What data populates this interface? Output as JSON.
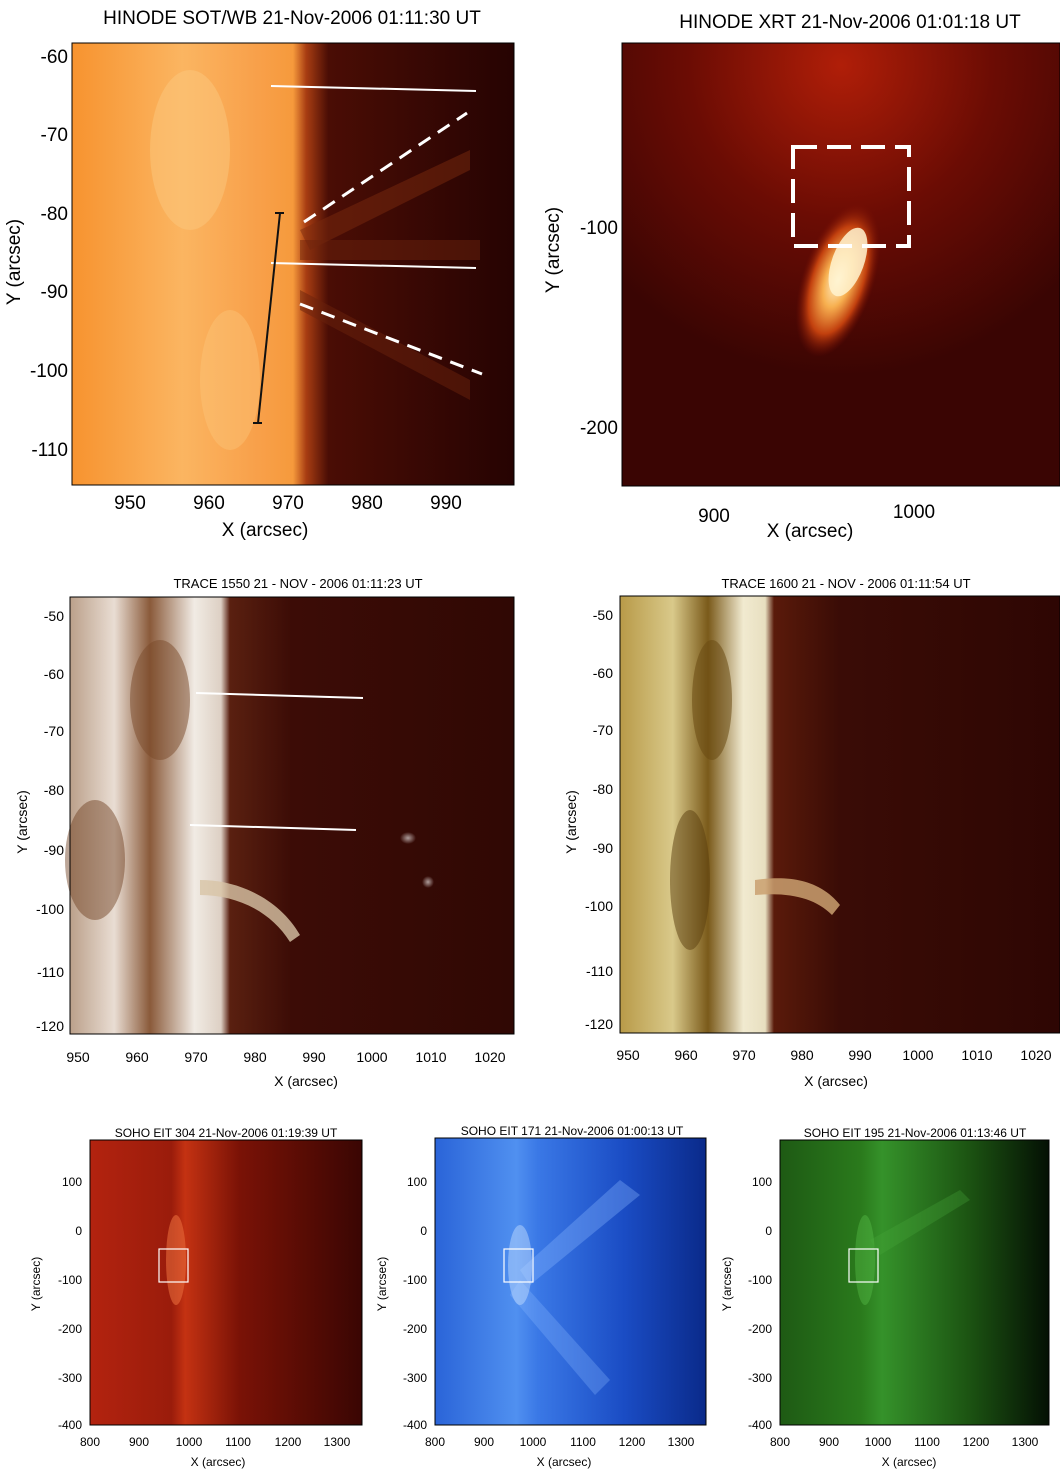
{
  "figure": {
    "panels": [
      {
        "id": "sot",
        "title": "HINODE SOT/WB 21-Nov-2006 01:11:30 UT",
        "xlabel": "X (arcsec)",
        "ylabel": "Y (arcsec)",
        "xticks": [
          "950",
          "960",
          "970",
          "980",
          "990"
        ],
        "yticks": [
          "-60",
          "-70",
          "-80",
          "-90",
          "-100",
          "-110"
        ],
        "colormap": "orange"
      },
      {
        "id": "xrt",
        "title": "HINODE XRT 21-Nov-2006 01:01:18 UT",
        "xlabel": "X (arcsec)",
        "ylabel": "Y (arcsec)",
        "xticks": [
          "900",
          "1000"
        ],
        "yticks": [
          "-100",
          "-200"
        ],
        "colormap": "red"
      },
      {
        "id": "trace1550",
        "title": "TRACE 1550 21 - NOV - 2006 01:11:23 UT",
        "xlabel": "X (arcsec)",
        "ylabel": "Y (arcsec)",
        "xticks": [
          "950",
          "960",
          "970",
          "980",
          "990",
          "1000",
          "1010",
          "1020"
        ],
        "yticks": [
          "-50",
          "-60",
          "-70",
          "-80",
          "-90",
          "-100",
          "-110",
          "-120"
        ],
        "colormap": "brown-white"
      },
      {
        "id": "trace1600",
        "title": "TRACE 1600 21 - NOV - 2006 01:11:54 UT",
        "xlabel": "X (arcsec)",
        "ylabel": "Y (arcsec)",
        "xticks": [
          "950",
          "960",
          "970",
          "980",
          "990",
          "1000",
          "1010",
          "1020"
        ],
        "yticks": [
          "-50",
          "-60",
          "-70",
          "-80",
          "-90",
          "-100",
          "-110",
          "-120"
        ],
        "colormap": "olive-brown"
      },
      {
        "id": "eit304",
        "title": "SOHO EIT 304 21-Nov-2006 01:19:39 UT",
        "xlabel": "X (arcsec)",
        "ylabel": "Y (arcsec)",
        "xticks": [
          "800",
          "900",
          "1000",
          "1100",
          "1200",
          "1300"
        ],
        "yticks": [
          "100",
          "0",
          "-100",
          "-200",
          "-300",
          "-400"
        ],
        "colormap": "red"
      },
      {
        "id": "eit171",
        "title": "SOHO EIT 171 21-Nov-2006 01:00:13 UT",
        "xlabel": "X (arcsec)",
        "ylabel": "Y (arcsec)",
        "xticks": [
          "800",
          "900",
          "1000",
          "1100",
          "1200",
          "1300"
        ],
        "yticks": [
          "100",
          "0",
          "-100",
          "-200",
          "-300",
          "-400"
        ],
        "colormap": "blue"
      },
      {
        "id": "eit195",
        "title": "SOHO EIT 195 21-Nov-2006 01:13:46 UT",
        "xlabel": "X (arcsec)",
        "ylabel": "Y (arcsec)",
        "xticks": [
          "800",
          "900",
          "1000",
          "1100",
          "1200",
          "1300"
        ],
        "yticks": [
          "100",
          "0",
          "-100",
          "-200",
          "-300",
          "-400"
        ],
        "colormap": "green"
      }
    ]
  }
}
